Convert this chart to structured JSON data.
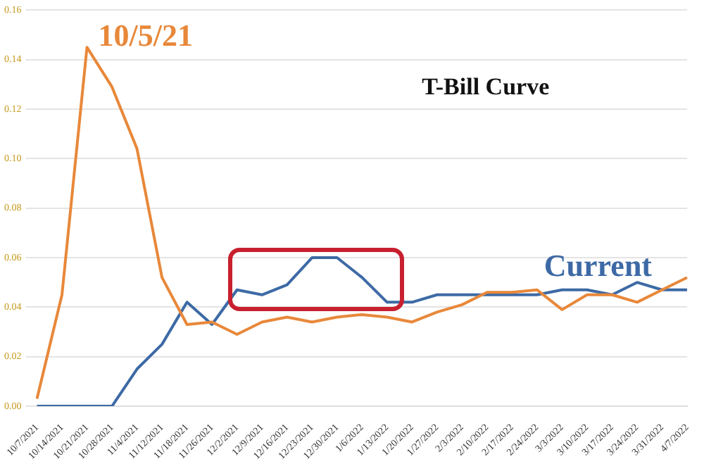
{
  "chart_data": {
    "type": "line",
    "title": "T-Bill Curve",
    "categories": [
      "10/7/2021",
      "10/14/2021",
      "10/21/2021",
      "10/28/2021",
      "11/4/2021",
      "11/12/2021",
      "11/18/2021",
      "11/26/2021",
      "12/2/2021",
      "12/9/2021",
      "12/16/2021",
      "12/23/2021",
      "12/30/2021",
      "1/6/2022",
      "1/13/2022",
      "1/20/2022",
      "1/27/2022",
      "2/3/2022",
      "2/10/2022",
      "2/17/2022",
      "2/24/2022",
      "3/3/2022",
      "3/10/2022",
      "3/17/2022",
      "3/24/2022",
      "3/31/2022",
      "4/7/2022"
    ],
    "series": [
      {
        "name": "10/5/21",
        "color": "#e8883a",
        "values": [
          0.003,
          0.045,
          0.145,
          0.129,
          0.104,
          0.052,
          0.033,
          0.034,
          0.029,
          0.034,
          0.036,
          0.034,
          0.036,
          0.037,
          0.036,
          0.034,
          0.038,
          0.041,
          0.046,
          0.046,
          0.047,
          0.039,
          0.045,
          0.045,
          0.042,
          0.047,
          0.052
        ]
      },
      {
        "name": "Current",
        "color": "#3d6aa5",
        "values": [
          0,
          0,
          0,
          0,
          0.015,
          0.025,
          0.042,
          0.033,
          0.047,
          0.045,
          0.049,
          0.06,
          0.06,
          0.052,
          0.042,
          0.042,
          0.045,
          0.045,
          0.045,
          0.045,
          0.045,
          0.047,
          0.047,
          0.045,
          0.05,
          0.047,
          0.047
        ]
      }
    ],
    "ylim": [
      0,
      0.16
    ],
    "yticks": [
      {
        "value": 0,
        "label": "0.00"
      },
      {
        "value": 0.02,
        "label": "0.02"
      },
      {
        "value": 0.04,
        "label": "0.04"
      },
      {
        "value": 0.06,
        "label": "0.06"
      },
      {
        "value": 0.08,
        "label": "0.08"
      },
      {
        "value": 0.1,
        "label": "0.10"
      },
      {
        "value": 0.12,
        "label": "0.12"
      },
      {
        "value": 0.14,
        "label": "0.14"
      },
      {
        "value": 0.16,
        "label": "0.16"
      }
    ],
    "grid": "y",
    "legend": false,
    "marker": "none",
    "line_style": "solid"
  }
}
